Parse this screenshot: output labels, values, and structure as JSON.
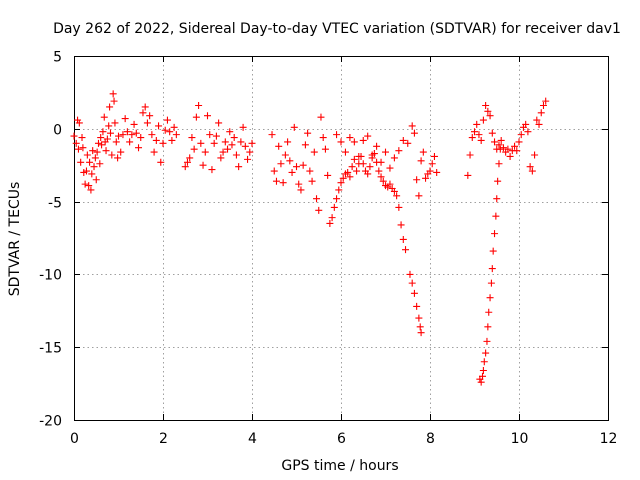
{
  "chart_data": {
    "type": "scatter",
    "title": "Day 262 of 2022, Sidereal Day-to-day VTEC variation (SDTVAR) for receiver dav1",
    "xlabel": "GPS time / hours",
    "ylabel": "SDTVAR / TECUs",
    "xlim": [
      0,
      12
    ],
    "ylim": [
      -20,
      5
    ],
    "xticks": [
      0,
      2,
      4,
      6,
      8,
      10,
      12
    ],
    "yticks": [
      5,
      0,
      -5,
      -10,
      -15,
      -20
    ],
    "grid": true,
    "marker": "+",
    "color": "#ff0000",
    "series": [
      {
        "name": "dav1",
        "points": [
          [
            0.0,
            -0.5
          ],
          [
            0.05,
            -1.0
          ],
          [
            0.08,
            0.6
          ],
          [
            0.1,
            -1.4
          ],
          [
            0.12,
            0.4
          ],
          [
            0.15,
            -2.3
          ],
          [
            0.18,
            -0.6
          ],
          [
            0.2,
            -1.3
          ],
          [
            0.22,
            -3.0
          ],
          [
            0.25,
            -3.8
          ],
          [
            0.28,
            -2.9
          ],
          [
            0.3,
            -1.8
          ],
          [
            0.33,
            -3.9
          ],
          [
            0.35,
            -2.3
          ],
          [
            0.38,
            -4.2
          ],
          [
            0.4,
            -3.1
          ],
          [
            0.42,
            -1.5
          ],
          [
            0.45,
            -2.6
          ],
          [
            0.48,
            -2.0
          ],
          [
            0.5,
            -3.5
          ],
          [
            0.52,
            -1.6
          ],
          [
            0.55,
            -1.0
          ],
          [
            0.58,
            -2.4
          ],
          [
            0.6,
            -0.6
          ],
          [
            0.62,
            -1.1
          ],
          [
            0.65,
            -0.2
          ],
          [
            0.68,
            0.8
          ],
          [
            0.7,
            -0.9
          ],
          [
            0.72,
            -1.5
          ],
          [
            0.75,
            -0.7
          ],
          [
            0.78,
            0.2
          ],
          [
            0.8,
            1.5
          ],
          [
            0.82,
            -0.3
          ],
          [
            0.85,
            -1.8
          ],
          [
            0.88,
            2.4
          ],
          [
            0.9,
            1.9
          ],
          [
            0.92,
            0.4
          ],
          [
            0.95,
            -0.9
          ],
          [
            0.98,
            -2.0
          ],
          [
            1.0,
            -0.5
          ],
          [
            1.05,
            -1.6
          ],
          [
            1.1,
            -0.4
          ],
          [
            1.15,
            0.7
          ],
          [
            1.2,
            -0.2
          ],
          [
            1.25,
            -0.9
          ],
          [
            1.3,
            -0.4
          ],
          [
            1.35,
            0.3
          ],
          [
            1.4,
            -0.3
          ],
          [
            1.45,
            -1.3
          ],
          [
            1.5,
            -0.6
          ],
          [
            1.55,
            1.1
          ],
          [
            1.6,
            1.5
          ],
          [
            1.65,
            0.4
          ],
          [
            1.7,
            0.9
          ],
          [
            1.75,
            -0.4
          ],
          [
            1.8,
            -1.6
          ],
          [
            1.85,
            -0.8
          ],
          [
            1.9,
            0.2
          ],
          [
            1.95,
            -2.3
          ],
          [
            2.0,
            -1.0
          ],
          [
            2.05,
            -0.1
          ],
          [
            2.1,
            0.6
          ],
          [
            2.15,
            -0.2
          ],
          [
            2.2,
            -0.8
          ],
          [
            2.25,
            0.1
          ],
          [
            2.3,
            -0.4
          ],
          [
            2.5,
            -2.6
          ],
          [
            2.55,
            -2.3
          ],
          [
            2.6,
            -2.0
          ],
          [
            2.65,
            -0.6
          ],
          [
            2.7,
            -1.4
          ],
          [
            2.75,
            0.8
          ],
          [
            2.8,
            1.6
          ],
          [
            2.85,
            -1.0
          ],
          [
            2.9,
            -2.5
          ],
          [
            2.95,
            -1.6
          ],
          [
            3.0,
            0.9
          ],
          [
            3.05,
            -0.4
          ],
          [
            3.1,
            -2.8
          ],
          [
            3.15,
            -1.0
          ],
          [
            3.2,
            -0.5
          ],
          [
            3.25,
            0.4
          ],
          [
            3.3,
            -2.0
          ],
          [
            3.35,
            -1.6
          ],
          [
            3.4,
            -0.9
          ],
          [
            3.45,
            -1.4
          ],
          [
            3.5,
            -0.2
          ],
          [
            3.55,
            -1.1
          ],
          [
            3.6,
            -0.6
          ],
          [
            3.65,
            -1.8
          ],
          [
            3.7,
            -2.6
          ],
          [
            3.75,
            -0.9
          ],
          [
            3.8,
            0.1
          ],
          [
            3.85,
            -1.2
          ],
          [
            3.9,
            -2.1
          ],
          [
            3.95,
            -1.6
          ],
          [
            4.0,
            -1.0
          ],
          [
            4.45,
            -0.4
          ],
          [
            4.5,
            -2.9
          ],
          [
            4.55,
            -3.6
          ],
          [
            4.6,
            -1.2
          ],
          [
            4.65,
            -2.4
          ],
          [
            4.7,
            -3.7
          ],
          [
            4.75,
            -1.8
          ],
          [
            4.8,
            -0.9
          ],
          [
            4.85,
            -2.2
          ],
          [
            4.9,
            -3.0
          ],
          [
            4.95,
            0.1
          ],
          [
            5.0,
            -2.6
          ],
          [
            5.05,
            -3.8
          ],
          [
            5.1,
            -4.2
          ],
          [
            5.15,
            -2.5
          ],
          [
            5.2,
            -1.1
          ],
          [
            5.25,
            -0.3
          ],
          [
            5.3,
            -2.9
          ],
          [
            5.35,
            -3.6
          ],
          [
            5.4,
            -1.6
          ],
          [
            5.45,
            -4.8
          ],
          [
            5.5,
            -5.6
          ],
          [
            5.55,
            0.8
          ],
          [
            5.6,
            -0.6
          ],
          [
            5.65,
            -1.4
          ],
          [
            5.7,
            -3.2
          ],
          [
            5.75,
            -6.5
          ],
          [
            5.8,
            -6.1
          ],
          [
            5.85,
            -5.4
          ],
          [
            5.9,
            -4.8
          ],
          [
            5.95,
            -4.2
          ],
          [
            6.0,
            -3.7
          ],
          [
            6.05,
            -3.4
          ],
          [
            6.1,
            -3.1
          ],
          [
            6.15,
            -3.0
          ],
          [
            6.2,
            -3.3
          ],
          [
            6.25,
            -2.6
          ],
          [
            6.3,
            -2.1
          ],
          [
            6.35,
            -2.9
          ],
          [
            6.4,
            -2.4
          ],
          [
            6.45,
            -1.9
          ],
          [
            6.5,
            -2.4
          ],
          [
            6.55,
            -2.9
          ],
          [
            6.6,
            -3.1
          ],
          [
            6.65,
            -2.6
          ],
          [
            6.7,
            -2.0
          ],
          [
            6.75,
            -1.7
          ],
          [
            6.8,
            -2.3
          ],
          [
            6.85,
            -2.9
          ],
          [
            6.9,
            -3.3
          ],
          [
            6.95,
            -3.6
          ],
          [
            7.0,
            -3.9
          ],
          [
            7.05,
            -4.0
          ],
          [
            7.1,
            -3.8
          ],
          [
            7.15,
            -4.1
          ],
          [
            7.2,
            -4.3
          ],
          [
            7.25,
            -4.6
          ],
          [
            7.3,
            -5.4
          ],
          [
            7.35,
            -6.6
          ],
          [
            7.4,
            -7.6
          ],
          [
            7.45,
            -8.3
          ],
          [
            5.9,
            -0.4
          ],
          [
            6.0,
            -0.9
          ],
          [
            6.1,
            -1.6
          ],
          [
            6.2,
            -0.6
          ],
          [
            6.3,
            -0.9
          ],
          [
            6.4,
            -1.9
          ],
          [
            6.5,
            -0.8
          ],
          [
            6.6,
            -0.5
          ],
          [
            6.7,
            -1.8
          ],
          [
            6.8,
            -1.2
          ],
          [
            6.9,
            -2.3
          ],
          [
            7.0,
            -1.6
          ],
          [
            7.1,
            -2.7
          ],
          [
            7.2,
            -2.0
          ],
          [
            7.3,
            -1.5
          ],
          [
            7.4,
            -0.8
          ],
          [
            7.5,
            -1.0
          ],
          [
            7.55,
            -10.0
          ],
          [
            7.6,
            -10.6
          ],
          [
            7.65,
            -11.3
          ],
          [
            7.7,
            -12.2
          ],
          [
            7.75,
            -13.0
          ],
          [
            7.78,
            -13.6
          ],
          [
            7.8,
            -14.0
          ],
          [
            7.6,
            0.2
          ],
          [
            7.65,
            -0.3
          ],
          [
            7.7,
            -3.5
          ],
          [
            7.75,
            -4.6
          ],
          [
            7.8,
            -2.2
          ],
          [
            7.85,
            -1.6
          ],
          [
            7.9,
            -3.4
          ],
          [
            7.95,
            -3.1
          ],
          [
            8.0,
            -2.9
          ],
          [
            8.05,
            -2.4
          ],
          [
            8.1,
            -1.9
          ],
          [
            8.15,
            -3.0
          ],
          [
            8.85,
            -3.2
          ],
          [
            8.9,
            -1.8
          ],
          [
            8.95,
            -0.6
          ],
          [
            9.0,
            -0.2
          ],
          [
            9.05,
            0.3
          ],
          [
            9.1,
            -0.4
          ],
          [
            9.15,
            -0.8
          ],
          [
            9.12,
            -17.2
          ],
          [
            9.15,
            -17.4
          ],
          [
            9.18,
            -17.0
          ],
          [
            9.2,
            -16.6
          ],
          [
            9.22,
            -16.0
          ],
          [
            9.25,
            -15.4
          ],
          [
            9.28,
            -14.6
          ],
          [
            9.3,
            -13.6
          ],
          [
            9.32,
            -12.6
          ],
          [
            9.35,
            -11.6
          ],
          [
            9.38,
            -10.6
          ],
          [
            9.4,
            -9.6
          ],
          [
            9.42,
            -8.4
          ],
          [
            9.45,
            -7.2
          ],
          [
            9.48,
            -6.0
          ],
          [
            9.5,
            -4.8
          ],
          [
            9.52,
            -3.6
          ],
          [
            9.55,
            -2.4
          ],
          [
            9.58,
            -1.4
          ],
          [
            9.2,
            0.6
          ],
          [
            9.25,
            1.6
          ],
          [
            9.3,
            1.2
          ],
          [
            9.35,
            0.9
          ],
          [
            9.4,
            -0.3
          ],
          [
            9.45,
            -0.9
          ],
          [
            9.5,
            -1.4
          ],
          [
            9.55,
            -1.1
          ],
          [
            9.6,
            -0.8
          ],
          [
            9.65,
            -1.3
          ],
          [
            9.7,
            -1.6
          ],
          [
            9.75,
            -1.4
          ],
          [
            9.8,
            -1.9
          ],
          [
            9.85,
            -1.5
          ],
          [
            9.9,
            -1.2
          ],
          [
            9.95,
            -1.5
          ],
          [
            10.0,
            -0.9
          ],
          [
            10.05,
            -0.4
          ],
          [
            10.1,
            0.1
          ],
          [
            10.15,
            0.3
          ],
          [
            10.2,
            -0.2
          ],
          [
            10.25,
            -2.6
          ],
          [
            10.3,
            -2.9
          ],
          [
            10.35,
            -1.8
          ],
          [
            10.4,
            0.6
          ],
          [
            10.45,
            0.3
          ],
          [
            10.5,
            1.1
          ],
          [
            10.55,
            1.6
          ],
          [
            10.6,
            1.9
          ]
        ]
      }
    ]
  }
}
